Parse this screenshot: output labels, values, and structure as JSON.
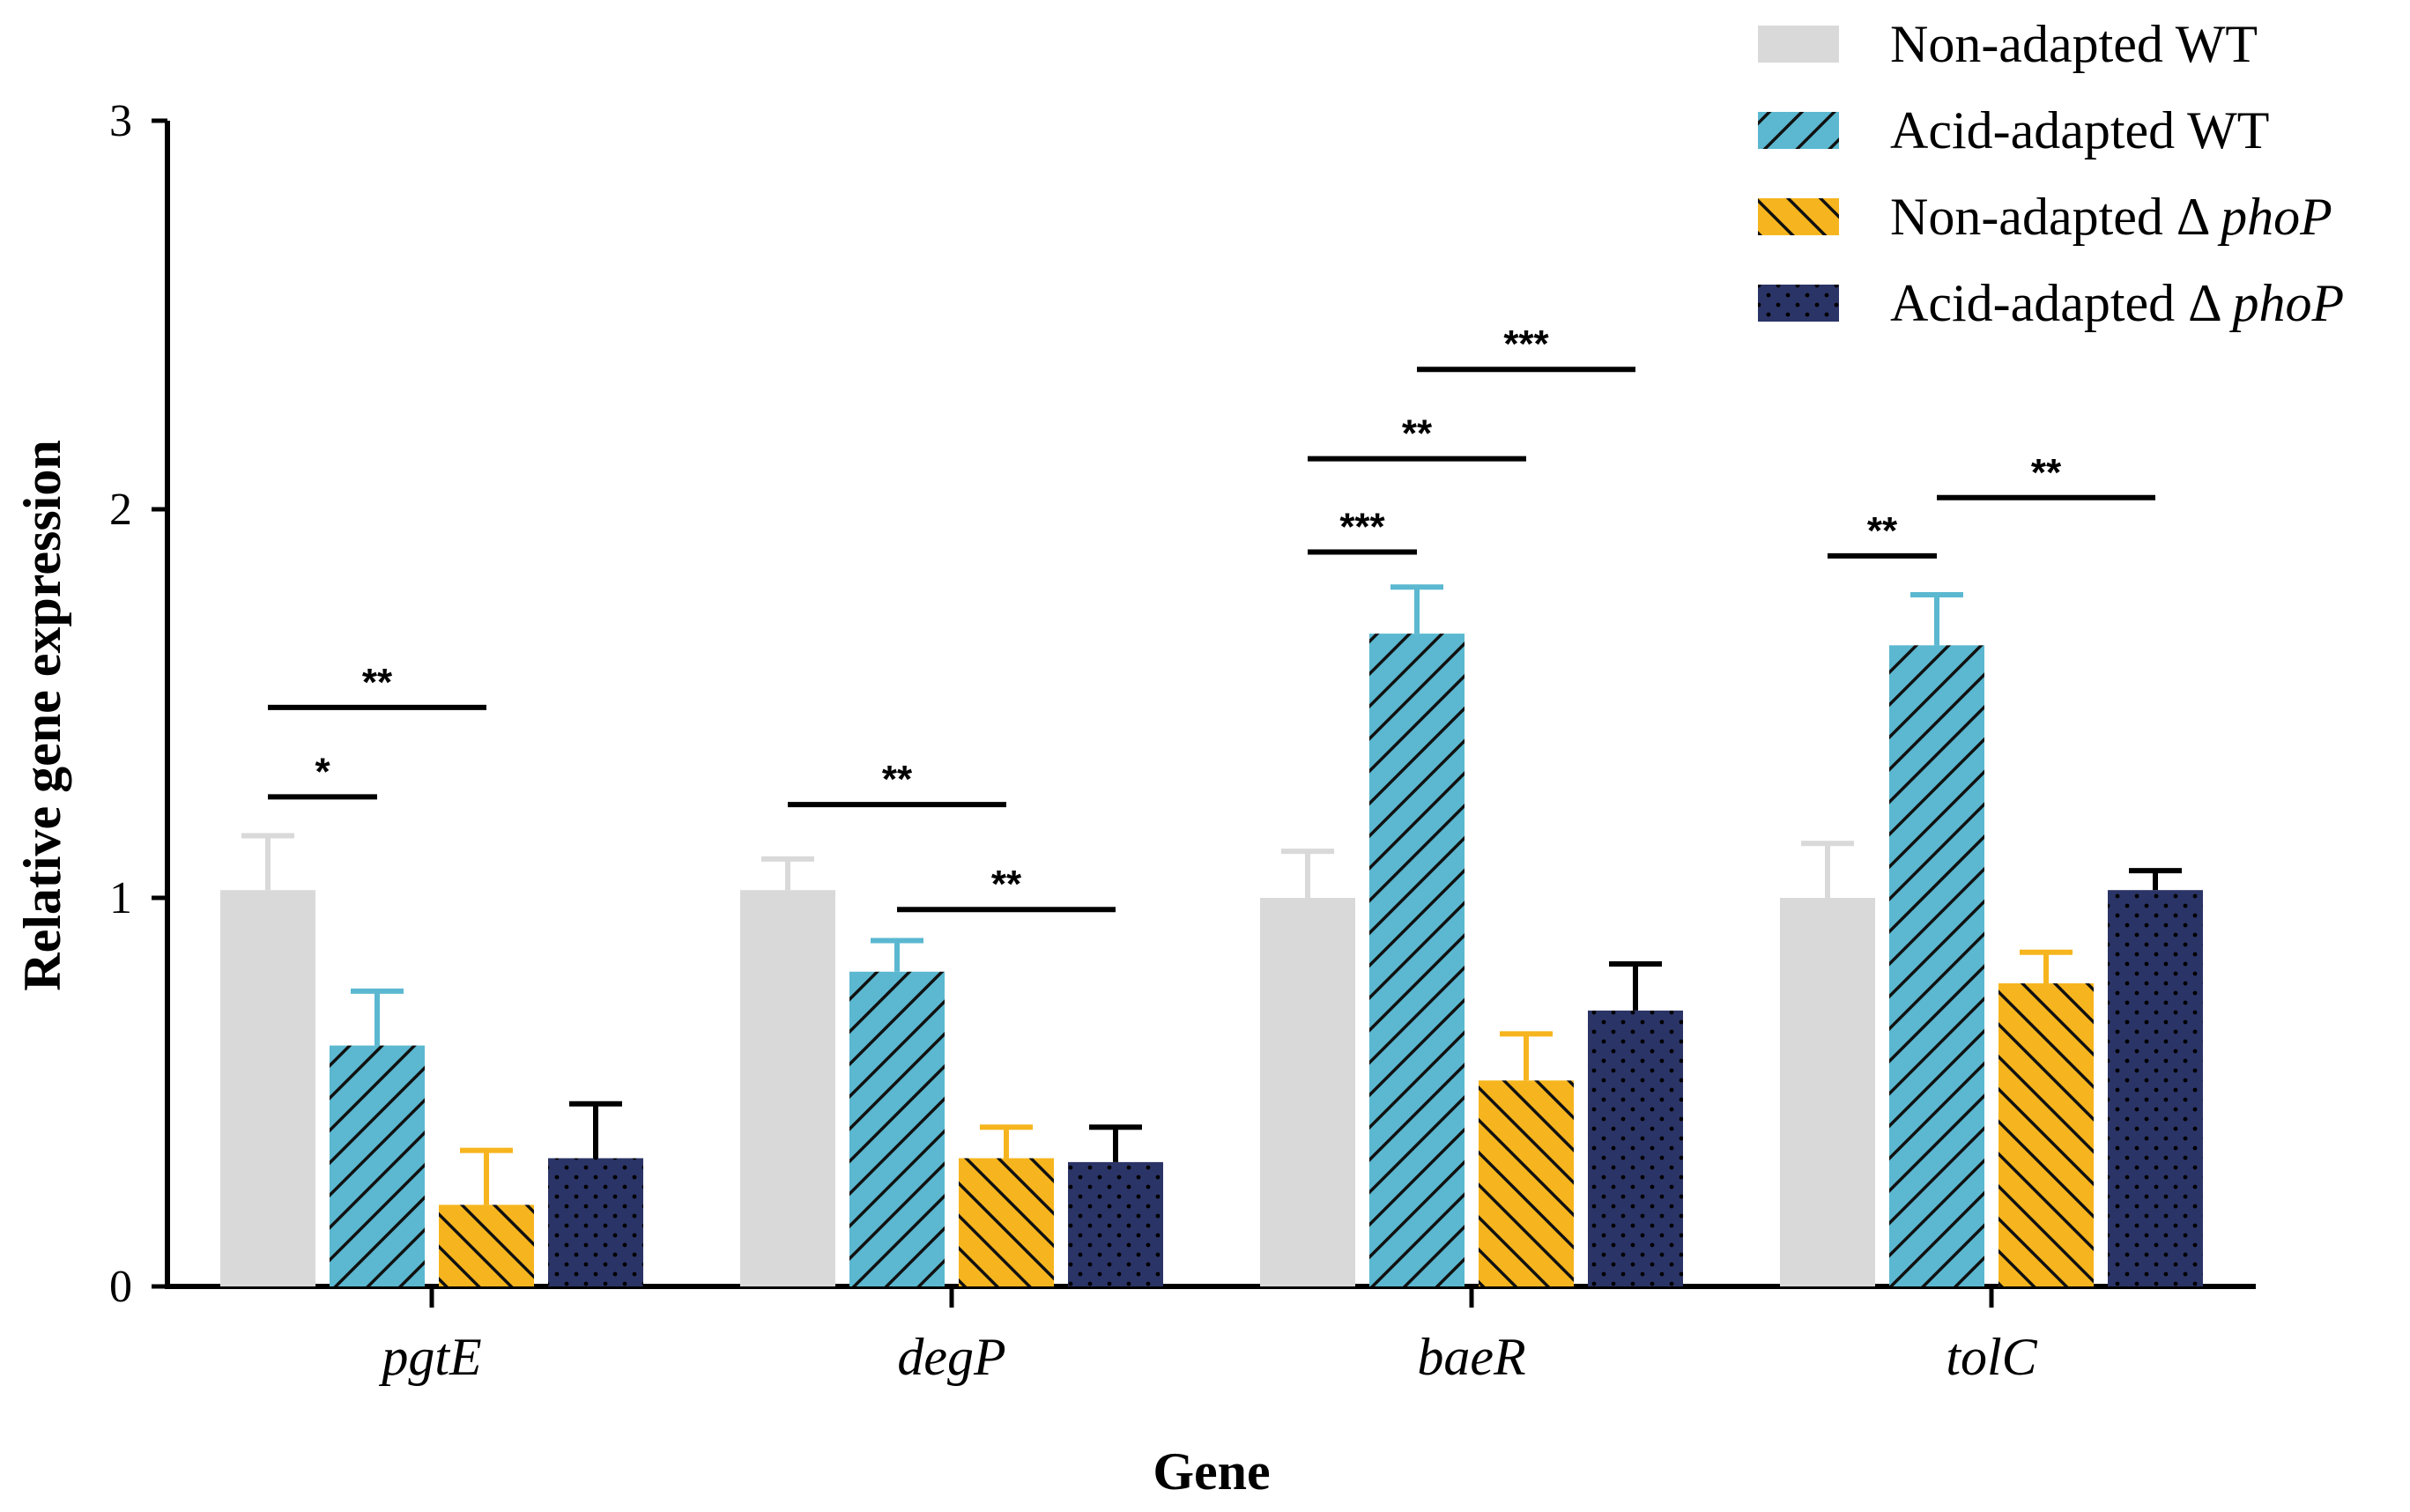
{
  "chart_data": {
    "type": "bar",
    "title": "",
    "xlabel": "Gene",
    "ylabel": "Relative gene expression",
    "ylim": [
      0,
      3
    ],
    "yticks": [
      0,
      1,
      2,
      3
    ],
    "grid": false,
    "legend_position": "top-right",
    "categories": [
      "pgtE",
      "degP",
      "baeR",
      "tolC"
    ],
    "series": [
      {
        "name": "Non-adapted WT",
        "legend_prefix": "Non-adapted WT",
        "legend_italic": "",
        "fill": "#d9d9d9",
        "pattern": "solid",
        "error_color": "#d9d9d9",
        "values": [
          1.02,
          1.02,
          1.0,
          1.0
        ],
        "errors": [
          0.14,
          0.08,
          0.12,
          0.14
        ]
      },
      {
        "name": "Acid-adapted WT",
        "legend_prefix": "Acid-adapted WT",
        "legend_italic": "",
        "fill": "#5bb8d0",
        "pattern": "diagonal-up",
        "error_color": "#5bb8d0",
        "values": [
          0.62,
          0.81,
          1.68,
          1.65
        ],
        "errors": [
          0.14,
          0.08,
          0.12,
          0.13
        ]
      },
      {
        "name": "Non-adapted Δ phoP",
        "legend_prefix": "Non-adapted Δ ",
        "legend_italic": "phoP",
        "fill": "#f6b51e",
        "pattern": "diagonal-down",
        "error_color": "#f6b51e",
        "values": [
          0.21,
          0.33,
          0.53,
          0.78
        ],
        "errors": [
          0.14,
          0.08,
          0.12,
          0.08
        ]
      },
      {
        "name": "Acid-adapted Δ phoP",
        "legend_prefix": "Acid-adapted Δ ",
        "legend_italic": "phoP",
        "fill": "#2b3466",
        "pattern": "dots",
        "error_color": "#000000",
        "values": [
          0.33,
          0.32,
          0.71,
          1.02
        ],
        "errors": [
          0.14,
          0.09,
          0.12,
          0.05
        ]
      }
    ],
    "significance": [
      {
        "category": 0,
        "from": 0,
        "to": 1,
        "y": 1.26,
        "label": "*"
      },
      {
        "category": 0,
        "from": 0,
        "to": 2,
        "y": 1.49,
        "label": "**"
      },
      {
        "category": 1,
        "from": 0,
        "to": 2,
        "y": 1.24,
        "label": "**"
      },
      {
        "category": 1,
        "from": 1,
        "to": 3,
        "y": 0.97,
        "label": "**"
      },
      {
        "category": 2,
        "from": 0,
        "to": 1,
        "y": 1.89,
        "label": "***"
      },
      {
        "category": 2,
        "from": 0,
        "to": 2,
        "y": 2.13,
        "label": "**"
      },
      {
        "category": 2,
        "from": 1,
        "to": 3,
        "y": 2.36,
        "label": "***"
      },
      {
        "category": 3,
        "from": 0,
        "to": 1,
        "y": 1.88,
        "label": "**"
      },
      {
        "category": 3,
        "from": 1,
        "to": 3,
        "y": 2.03,
        "label": "**"
      }
    ]
  }
}
